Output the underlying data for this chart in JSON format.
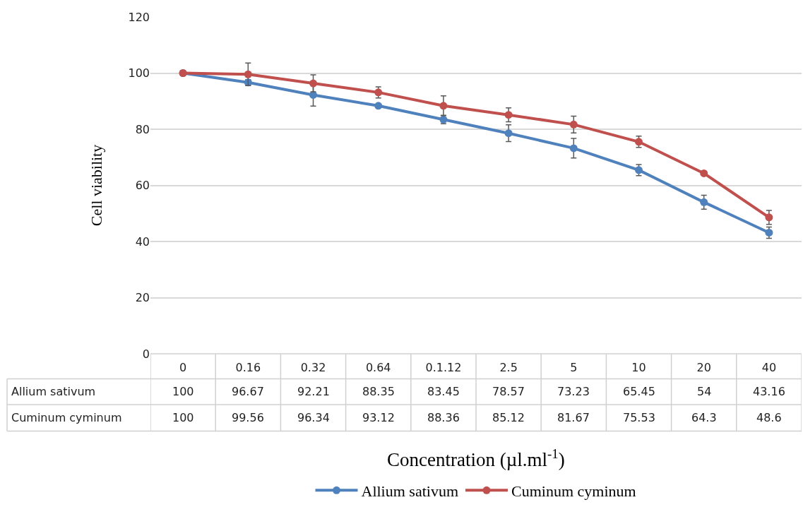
{
  "chart_data": {
    "type": "line",
    "xlabel": "Concentration (µl.ml$^{-1}$)",
    "ylabel": "Cell viability",
    "categories": [
      "0",
      "0.16",
      "0.32",
      "0.64",
      "0.1.12",
      "2.5",
      "5",
      "10",
      "20",
      "40"
    ],
    "series": [
      {
        "name": "Allium sativum",
        "color": "#4f81bd",
        "values": [
          100,
          96.67,
          92.21,
          88.35,
          83.45,
          78.57,
          73.23,
          65.45,
          54,
          43.16
        ],
        "errors": [
          null,
          1,
          4,
          null,
          1.5,
          3,
          3.5,
          2,
          2.5,
          2
        ]
      },
      {
        "name": "Cuminum cyminum",
        "color": "#c0504d",
        "values": [
          100,
          99.56,
          96.34,
          93.12,
          88.36,
          85.12,
          81.67,
          75.53,
          64.3,
          48.6
        ],
        "errors": [
          null,
          4,
          3,
          2,
          3.5,
          2.5,
          3,
          2,
          null,
          2.5
        ]
      }
    ],
    "ylim": [
      0,
      120
    ],
    "yticks": [
      0,
      20,
      40,
      60,
      80,
      100,
      120
    ],
    "grid": "y",
    "legend": "bottom",
    "marker": "circle",
    "line_style": "solid",
    "data_labels": true
  }
}
